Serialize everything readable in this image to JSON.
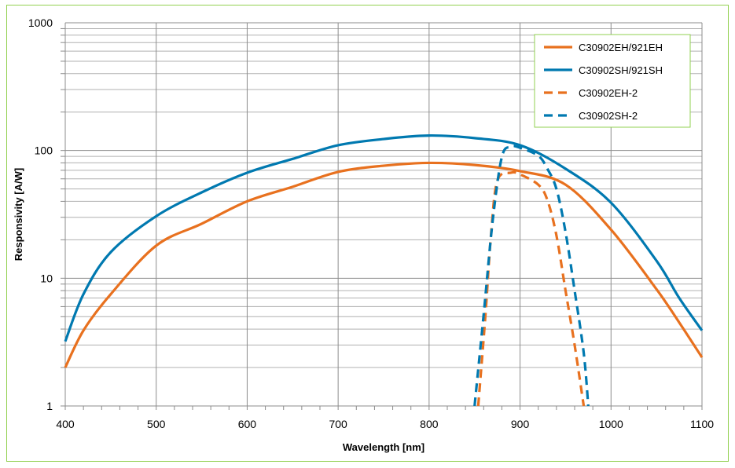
{
  "chart_data": {
    "type": "line",
    "title": "",
    "xlabel": "Wavelength [nm]",
    "ylabel": "Responsivity [A/W]",
    "xlim": [
      400,
      1100
    ],
    "ylim": [
      1,
      1000
    ],
    "yscale": "log",
    "x_ticks": [
      "400",
      "500",
      "600",
      "700",
      "800",
      "900",
      "1000",
      "1100"
    ],
    "y_ticks": [
      "1",
      "10",
      "100",
      "1000"
    ],
    "grid": true,
    "legend_position": "top-right",
    "series": [
      {
        "name": "C30902EH/921EH",
        "color": "#e8711f",
        "dash": false,
        "x": [
          400,
          420,
          450,
          500,
          550,
          600,
          650,
          700,
          750,
          800,
          850,
          900,
          950,
          1000,
          1050,
          1075,
          1100
        ],
        "y": [
          2.0,
          3.9,
          7.5,
          18,
          26.7,
          40,
          52,
          68,
          76,
          80,
          77,
          69,
          54,
          24,
          8.2,
          4.5,
          2.4
        ]
      },
      {
        "name": "C30902SH/921SH",
        "color": "#0079b0",
        "dash": false,
        "x": [
          400,
          420,
          450,
          500,
          550,
          600,
          650,
          700,
          750,
          800,
          850,
          900,
          950,
          1000,
          1050,
          1075,
          1100
        ],
        "y": [
          3.2,
          7.5,
          16,
          30.6,
          47,
          67,
          86,
          110,
          123,
          131,
          125,
          110,
          72,
          39,
          13.7,
          7,
          3.9
        ]
      },
      {
        "name": "C30902EH-2",
        "color": "#e8711f",
        "dash": true,
        "x": [
          854,
          862,
          868,
          875,
          890,
          900,
          920,
          930,
          940,
          950,
          960,
          970
        ],
        "y": [
          1,
          5.2,
          21.6,
          58,
          67,
          65,
          54,
          41,
          21.6,
          8,
          3,
          1
        ]
      },
      {
        "name": "C30902SH-2",
        "color": "#0079b0",
        "dash": true,
        "x": [
          850,
          860,
          870,
          880,
          890,
          900,
          920,
          930,
          940,
          950,
          960,
          970,
          975
        ],
        "y": [
          1,
          5.2,
          28.6,
          89,
          107,
          105,
          91,
          72,
          50,
          23,
          8,
          2.6,
          1
        ]
      }
    ]
  }
}
